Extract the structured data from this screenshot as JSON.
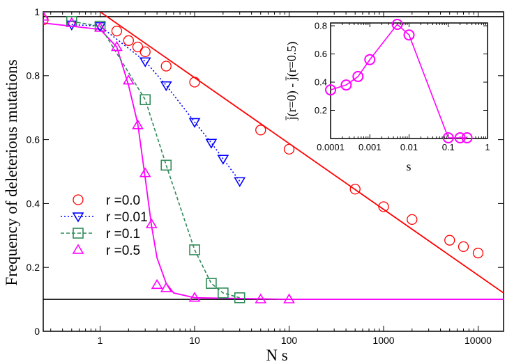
{
  "chart_data": [
    {
      "type": "line",
      "title": "",
      "xlabel": "N s",
      "ylabel": "Frequency of deleterious mutations",
      "xscale": "log",
      "xlim": [
        0.25,
        18600
      ],
      "ylim": [
        0,
        1
      ],
      "xticks": [
        "1",
        "10",
        "100",
        "1000",
        "10000"
      ],
      "xtick_values": [
        1,
        10,
        100,
        1000,
        10000
      ],
      "yticks": [
        "0",
        "0.2",
        "0.4",
        "0.6",
        "0.8",
        "1"
      ],
      "ytick_values": [
        0,
        0.2,
        0.4,
        0.6,
        0.8,
        1
      ],
      "reference_line_y": 0.1,
      "legend_position": "left-middle",
      "series": [
        {
          "name": "r =0.0",
          "color": "#ff0000",
          "marker": "circle",
          "line": "none",
          "x": [
            0.25,
            1.5,
            2,
            2.5,
            3,
            5,
            10,
            50,
            100,
            500,
            1000,
            2000,
            5000,
            7000,
            10000
          ],
          "y": [
            0.975,
            0.94,
            0.91,
            0.89,
            0.875,
            0.83,
            0.78,
            0.63,
            0.57,
            0.445,
            0.39,
            0.35,
            0.285,
            0.265,
            0.245
          ]
        },
        {
          "name": "r =0.01",
          "color": "#0000ff",
          "marker": "triangle-down",
          "line": "dotted",
          "x": [
            0.5,
            1,
            3,
            5,
            10,
            15,
            20,
            30
          ],
          "y": [
            0.96,
            0.955,
            0.845,
            0.77,
            0.655,
            0.59,
            0.54,
            0.47
          ]
        },
        {
          "name": "r =0.1",
          "color": "#2e8b57",
          "marker": "square",
          "line": "dashed",
          "x": [
            0.5,
            1,
            3,
            5,
            10,
            15,
            20,
            30
          ],
          "y": [
            0.97,
            0.955,
            0.725,
            0.52,
            0.255,
            0.15,
            0.12,
            0.105
          ]
        },
        {
          "name": "r =0.5",
          "color": "#ff00ff",
          "marker": "triangle-up",
          "line": "none",
          "x": [
            0.25,
            0.5,
            1,
            1.5,
            2,
            2.5,
            3,
            3.5,
            4,
            5,
            10,
            50,
            100
          ],
          "y": [
            0.985,
            0.965,
            0.95,
            0.89,
            0.785,
            0.645,
            0.495,
            0.335,
            0.145,
            0.135,
            0.105,
            0.1,
            0.1
          ]
        }
      ],
      "fit_lines": [
        {
          "name": "r=0 fit",
          "color": "#ff0000",
          "x": [
            1,
            18600
          ],
          "y": [
            1.0,
            0.12
          ]
        },
        {
          "name": "r=0.5 fit",
          "color": "#ff00ff",
          "x": [
            0.25,
            1,
            1.5,
            2,
            2.5,
            3,
            3.5,
            4,
            5,
            6,
            10,
            100,
            18600
          ],
          "y": [
            0.965,
            0.945,
            0.89,
            0.77,
            0.65,
            0.48,
            0.33,
            0.23,
            0.15,
            0.12,
            0.105,
            0.1,
            0.1
          ]
        }
      ]
    },
    {
      "type": "line",
      "title": "",
      "xlabel": "s",
      "ylabel": "j̄(r=0) - j̄(r=0.5)",
      "xscale": "log",
      "xlim": [
        0.0001,
        1
      ],
      "ylim": [
        0,
        0.82
      ],
      "xticks": [
        "0.0001",
        "0.001",
        "0.01",
        "0.1",
        "1"
      ],
      "xtick_values": [
        0.0001,
        0.001,
        0.01,
        0.1,
        1
      ],
      "yticks": [
        "0.2",
        "0.4",
        "0.6",
        "0.8"
      ],
      "ytick_values": [
        0.2,
        0.4,
        0.6,
        0.8
      ],
      "series": [
        {
          "name": "difference",
          "color": "#ff00ff",
          "marker": "circle",
          "line": "solid",
          "x": [
            0.0001,
            0.00025,
            0.0005,
            0.001,
            0.005,
            0.01,
            0.1,
            0.2,
            0.3
          ],
          "y": [
            0.345,
            0.38,
            0.44,
            0.56,
            0.81,
            0.735,
            0.005,
            0.005,
            0.005
          ]
        }
      ]
    }
  ]
}
